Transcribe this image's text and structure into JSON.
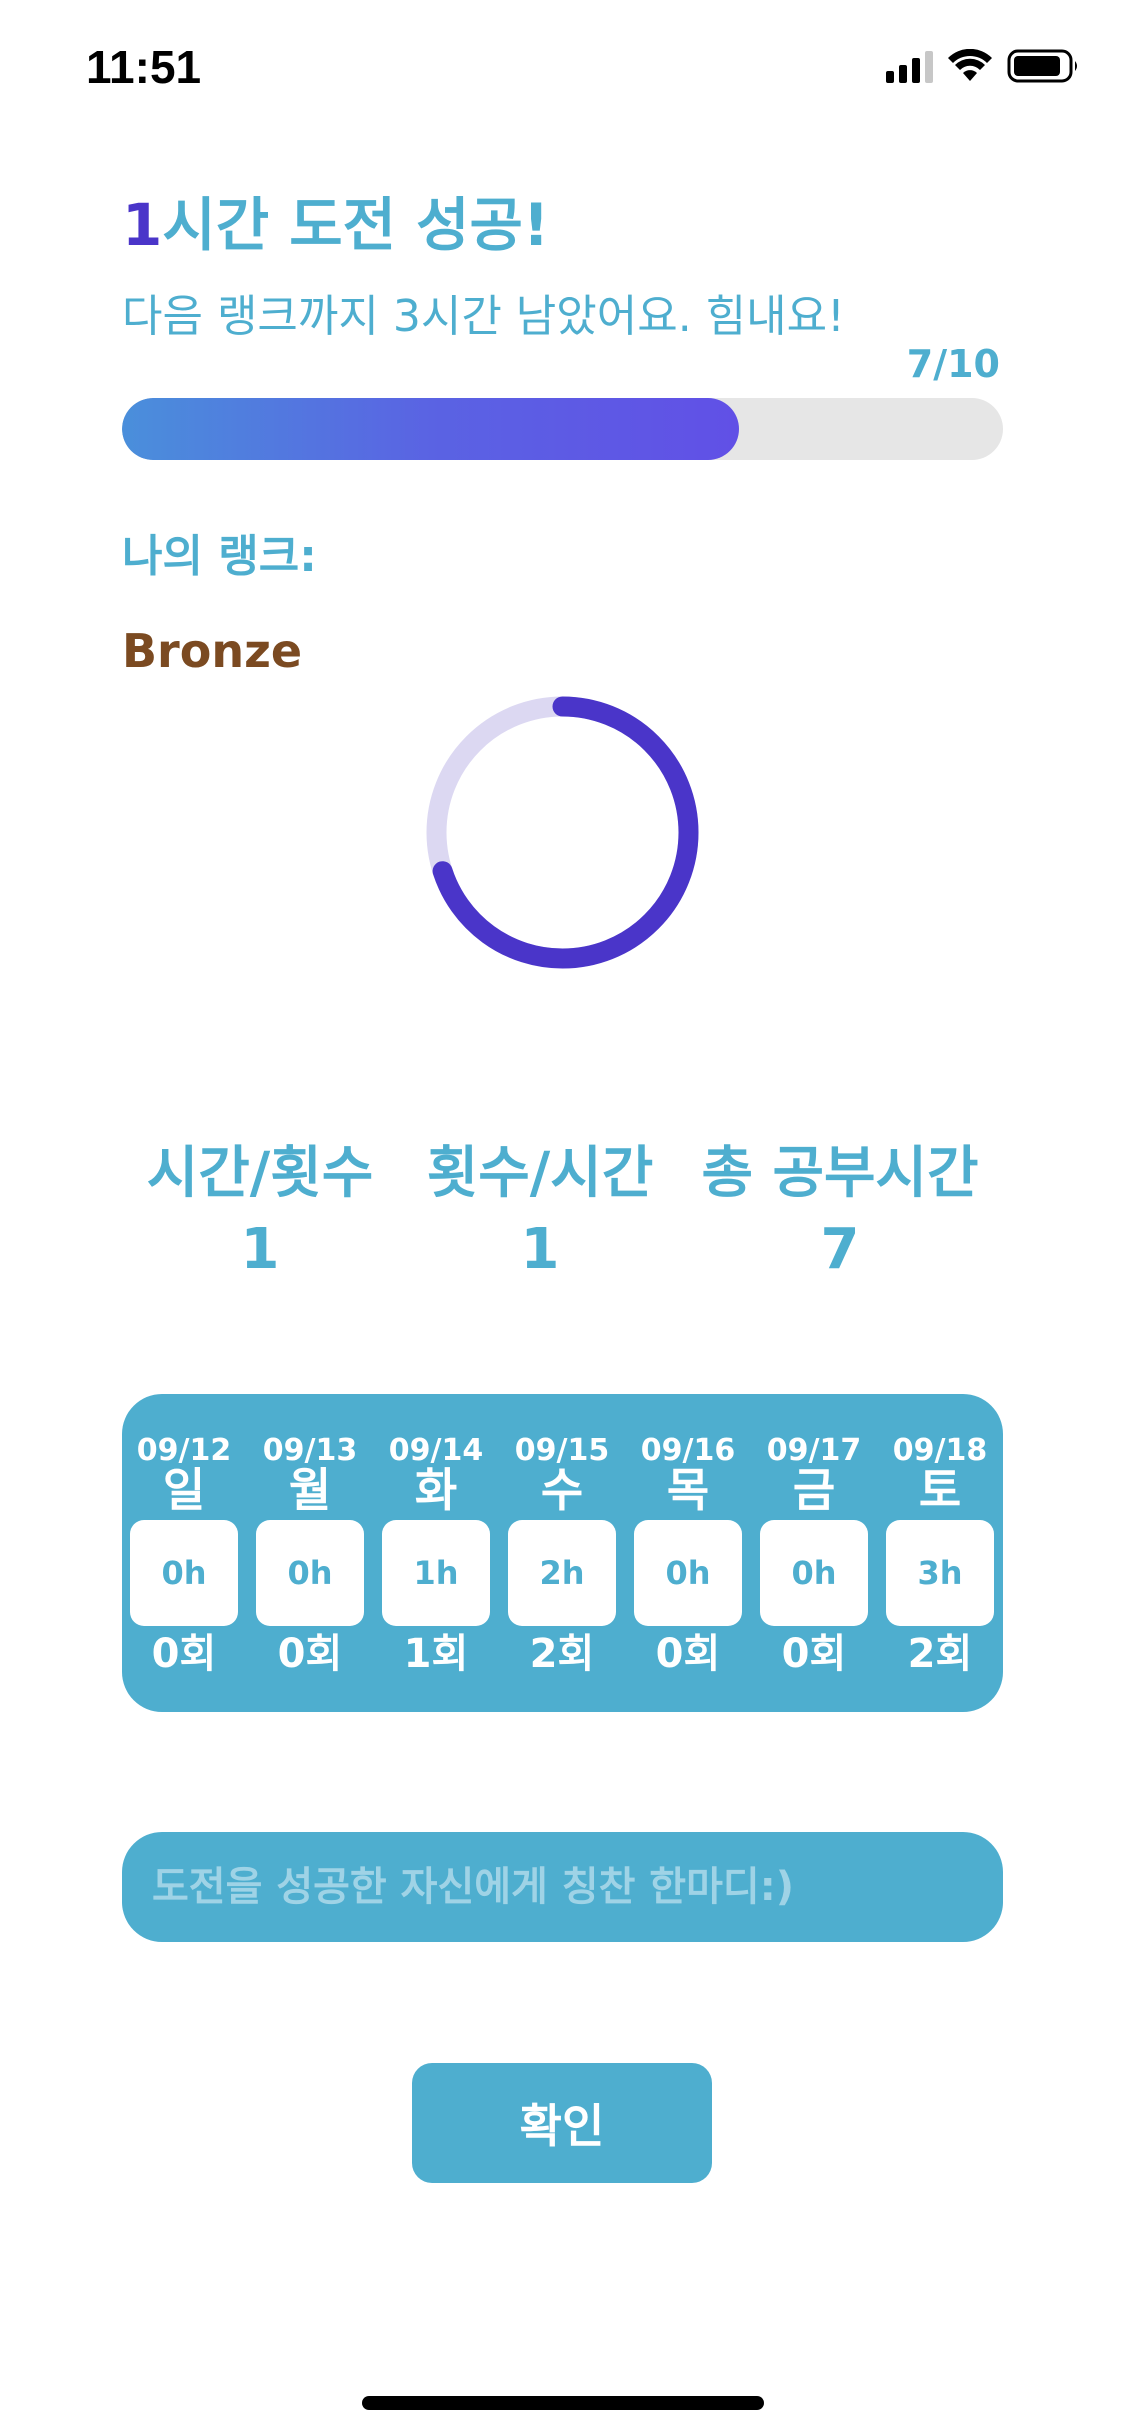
{
  "status_bar": {
    "time": "11:51",
    "signal_icon": "cellular-signal-icon",
    "wifi_icon": "wifi-icon",
    "battery_icon": "battery-icon"
  },
  "headline": {
    "hours": "1",
    "text": "시간 도전 성공!"
  },
  "subline": "다음 랭크까지 3시간 남았어요. 힘내요!",
  "progress": {
    "label": "7/10",
    "fraction": 0.7
  },
  "rank": {
    "label": "나의 랭크:",
    "name": "Bronze",
    "ring_fraction": 0.7
  },
  "stats": [
    {
      "label": "시간/횟수",
      "value": "1"
    },
    {
      "label": "횟수/시간",
      "value": "1"
    },
    {
      "label": "총 공부시간",
      "value": "7"
    }
  ],
  "week": [
    {
      "date": "09/12",
      "weekday": "일",
      "hours": "0h",
      "count": "0회"
    },
    {
      "date": "09/13",
      "weekday": "월",
      "hours": "0h",
      "count": "0회"
    },
    {
      "date": "09/14",
      "weekday": "화",
      "hours": "1h",
      "count": "1회"
    },
    {
      "date": "09/15",
      "weekday": "수",
      "hours": "2h",
      "count": "2회"
    },
    {
      "date": "09/16",
      "weekday": "목",
      "hours": "0h",
      "count": "0회"
    },
    {
      "date": "09/17",
      "weekday": "금",
      "hours": "0h",
      "count": "0회"
    },
    {
      "date": "09/18",
      "weekday": "토",
      "hours": "3h",
      "count": "2회"
    }
  ],
  "praise_input": {
    "placeholder": "도전을 성공한 자신에게 칭찬 한마디:)",
    "value": ""
  },
  "confirm_button": "확인",
  "colors": {
    "accent": "#4eaecf",
    "highlight": "#4a35c9",
    "bronze": "#7b4a21",
    "ring": "#4a35c9",
    "ring_track": "#dcd8f2"
  }
}
